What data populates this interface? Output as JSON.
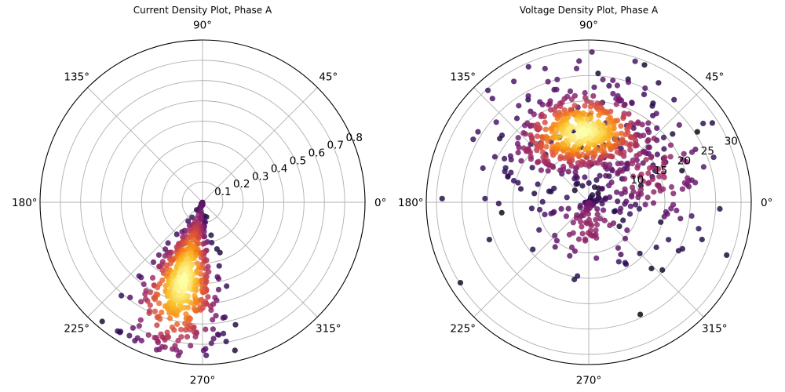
{
  "chart_data": [
    {
      "type": "scatter",
      "projection": "polar",
      "title": "Current Density Plot, Phase A",
      "angular_ticks": [
        "0°",
        "45°",
        "90°",
        "135°",
        "180°",
        "225°",
        "270°",
        "315°"
      ],
      "radial_ticks": [
        "0.1",
        "0.2",
        "0.3",
        "0.4",
        "0.5",
        "0.6",
        "0.7",
        "0.8"
      ],
      "rlim": [
        0,
        0.8
      ],
      "grid": true,
      "colormap": "inferno",
      "colors": {
        "low": "#000004",
        "high": "#fcffa4",
        "grid": "#b0b0b0"
      },
      "density_clusters": [
        {
          "theta_deg": 256,
          "r": 0.4,
          "theta_spread_deg": 12,
          "r_spread": 0.19,
          "n": 520
        }
      ],
      "theta_range_deg": [
        228,
        292
      ],
      "r_range": [
        0.0,
        0.77
      ]
    },
    {
      "type": "scatter",
      "projection": "polar",
      "title": "Voltage Density Plot, Phase A",
      "angular_ticks": [
        "0°",
        "45°",
        "90°",
        "135°",
        "180°",
        "225°",
        "270°",
        "315°"
      ],
      "radial_ticks": [
        "10",
        "15",
        "20",
        "25",
        "30"
      ],
      "rlim": [
        0,
        32
      ],
      "grid": true,
      "colormap": "inferno",
      "colors": {
        "low": "#000004",
        "high": "#fcffa4",
        "grid": "#b0b0b0"
      },
      "density_clusters": [
        {
          "theta_deg": 95,
          "r": 14,
          "theta_spread_deg": 28,
          "r_spread": 4,
          "n": 500
        },
        {
          "theta_deg": 30,
          "r": 14,
          "theta_spread_deg": 30,
          "r_spread": 7,
          "n": 140
        },
        {
          "theta_deg": 270,
          "r": 5,
          "theta_spread_deg": 60,
          "r_spread": 5,
          "n": 120
        },
        {
          "theta_deg": 90,
          "r": 22,
          "theta_spread_deg": 60,
          "r_spread": 8,
          "n": 60
        }
      ],
      "theta_range_deg": [
        0,
        360
      ],
      "r_range": [
        0,
        30
      ]
    }
  ]
}
